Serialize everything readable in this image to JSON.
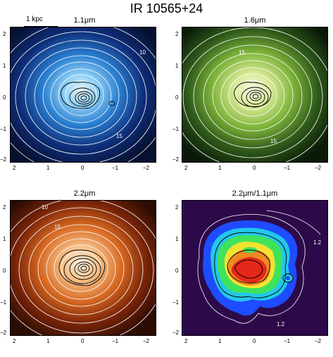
{
  "figure": {
    "title": "IR 10565+24",
    "scalebar_label": "1 kpc"
  },
  "panels": [
    {
      "label": "1.1μm",
      "contour_labels": [
        "10",
        "15"
      ]
    },
    {
      "label": "1.6μm",
      "contour_labels": [
        "15",
        "15"
      ]
    },
    {
      "label": "2.2μm",
      "contour_labels": [
        "10",
        "15"
      ]
    },
    {
      "label": "2.2μm/1.1μm",
      "contour_labels": [
        "1.2",
        "1.2"
      ]
    }
  ],
  "axes": {
    "x_ticks": [
      "2",
      "1",
      "0",
      "−1",
      "−2"
    ],
    "y_ticks": [
      "2",
      "1",
      "0",
      "−1",
      "−2"
    ]
  },
  "colors": {
    "blue_center": "#eaf6ff",
    "blue_edge": "#061030",
    "green_center": "#fbfbe8",
    "green_edge": "#0a1a08",
    "orange_center": "#fff4e2",
    "orange_edge": "#2a0c02",
    "ratio_bg": "#2c0a4a"
  }
}
